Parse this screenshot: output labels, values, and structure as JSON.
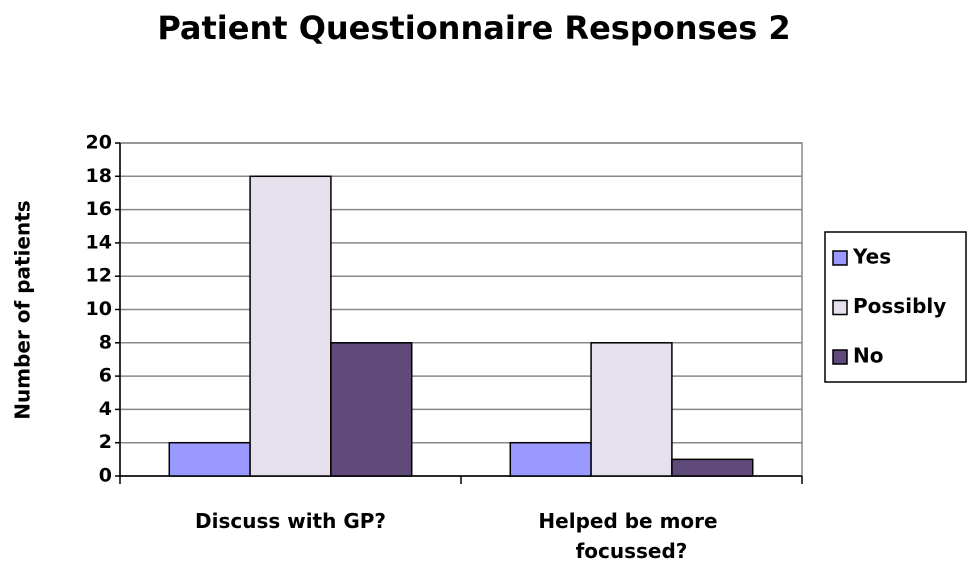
{
  "chart_data": {
    "type": "bar",
    "title": "Patient Questionnaire Responses 2",
    "y_label": "Number of patients",
    "categories": [
      "Discuss with GP?",
      "Helped be more focussed?"
    ],
    "series": [
      {
        "name": "Yes",
        "color": "#9999ff",
        "values": [
          2,
          2
        ]
      },
      {
        "name": "Possibly",
        "color": "#e6e0ec",
        "values": [
          18,
          8
        ]
      },
      {
        "name": "No",
        "color": "#604a7b",
        "values": [
          8,
          1
        ]
      }
    ],
    "ylim": [
      0,
      20
    ],
    "yticks": [
      0,
      2,
      4,
      6,
      8,
      10,
      12,
      14,
      16,
      18,
      20
    ],
    "grid": true,
    "legend": "right"
  }
}
